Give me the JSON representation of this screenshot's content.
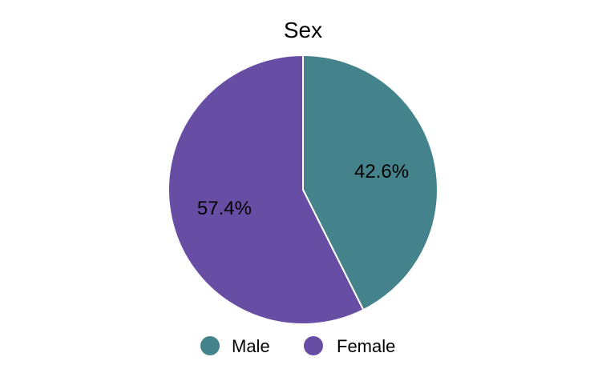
{
  "chart_data": {
    "type": "pie",
    "title": "Sex",
    "categories": [
      "Male",
      "Female"
    ],
    "values": [
      42.6,
      57.4
    ],
    "labels": [
      "42.6%",
      "57.4%"
    ],
    "colors": [
      "#45838c",
      "#674ea4"
    ],
    "legend_position": "bottom"
  }
}
